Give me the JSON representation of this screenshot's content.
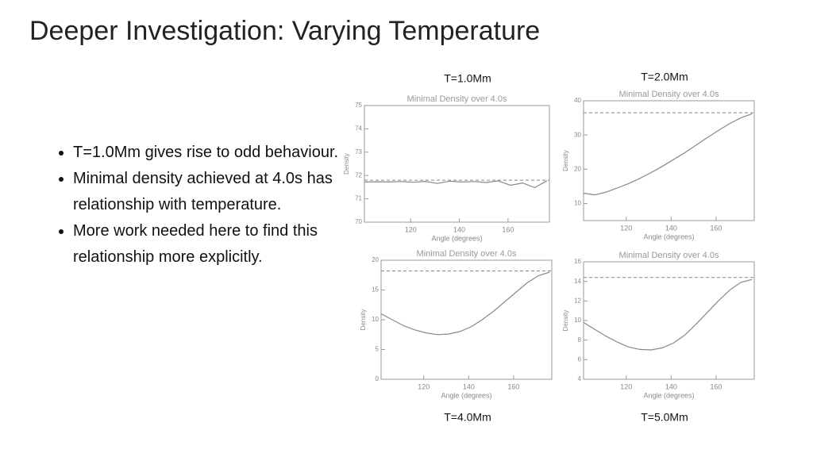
{
  "title": "Deeper Investigation: Varying Temperature",
  "bullets": [
    "T=1.0Mm gives rise to odd behaviour.",
    "Minimal density achieved at 4.0s has relationship with temperature.",
    "More work needed here to find this relationship more explicitly."
  ],
  "chart_data": [
    {
      "type": "line",
      "caption": "T=1.0Mm",
      "title": "Minimal Density over 4.0s",
      "x_label": "Angle (degrees)",
      "y_label": "Density",
      "color": "#888888",
      "xlim": [
        101,
        177
      ],
      "xticks": [
        120,
        140,
        160
      ],
      "ylim": [
        70,
        75
      ],
      "yticks": [
        70,
        71,
        72,
        73,
        74,
        75
      ],
      "reference": 71.8,
      "x": [
        101,
        106,
        111,
        116,
        121,
        126,
        131,
        136,
        141,
        146,
        151,
        156,
        161,
        166,
        171,
        176
      ],
      "values": [
        71.72,
        71.73,
        71.72,
        71.74,
        71.71,
        71.75,
        71.66,
        71.76,
        71.72,
        71.74,
        71.7,
        71.77,
        71.58,
        71.68,
        71.48,
        71.78
      ]
    },
    {
      "type": "line",
      "caption": "T=2.0Mm",
      "title": "Minimal Density over 4.0s",
      "x_label": "Angle (degrees)",
      "y_label": "Density",
      "color": "#888888",
      "xlim": [
        101,
        177
      ],
      "xticks": [
        120,
        140,
        160
      ],
      "ylim": [
        5,
        40
      ],
      "yticks": [
        10,
        20,
        30,
        40
      ],
      "reference": 36.5,
      "x": [
        101,
        106,
        111,
        116,
        121,
        126,
        131,
        136,
        141,
        146,
        151,
        156,
        161,
        166,
        171,
        176
      ],
      "values": [
        13,
        12.5,
        13.3,
        14.5,
        15.8,
        17.3,
        19,
        20.8,
        22.8,
        24.8,
        27,
        29.2,
        31.3,
        33.3,
        35,
        36.2
      ]
    },
    {
      "type": "line",
      "caption": "T=4.0Mm",
      "title": "Minimal Density over 4.0s",
      "x_label": "Angle (degrees)",
      "y_label": "Density",
      "color": "#888888",
      "xlim": [
        101,
        177
      ],
      "xticks": [
        120,
        140,
        160
      ],
      "ylim": [
        0,
        20
      ],
      "yticks": [
        0,
        5,
        10,
        15,
        20
      ],
      "reference": 18.2,
      "x": [
        101,
        106,
        111,
        116,
        121,
        126,
        131,
        136,
        141,
        146,
        151,
        156,
        161,
        166,
        171,
        176
      ],
      "values": [
        11,
        10,
        9,
        8.3,
        7.8,
        7.5,
        7.6,
        8,
        8.8,
        10,
        11.4,
        13,
        14.6,
        16.2,
        17.4,
        18
      ]
    },
    {
      "type": "line",
      "caption": "T=5.0Mm",
      "title": "Minimal Density over 4.0s",
      "x_label": "Angle (degrees)",
      "y_label": "Density",
      "color": "#888888",
      "xlim": [
        101,
        177
      ],
      "xticks": [
        120,
        140,
        160
      ],
      "ylim": [
        4,
        16
      ],
      "yticks": [
        4,
        6,
        8,
        10,
        12,
        14,
        16
      ],
      "reference": 14.4,
      "x": [
        101,
        106,
        111,
        116,
        121,
        126,
        131,
        136,
        141,
        146,
        151,
        156,
        161,
        166,
        171,
        176
      ],
      "values": [
        9.8,
        9.1,
        8.4,
        7.8,
        7.3,
        7.05,
        7.0,
        7.2,
        7.7,
        8.5,
        9.6,
        10.8,
        12,
        13.1,
        13.9,
        14.2
      ]
    }
  ]
}
